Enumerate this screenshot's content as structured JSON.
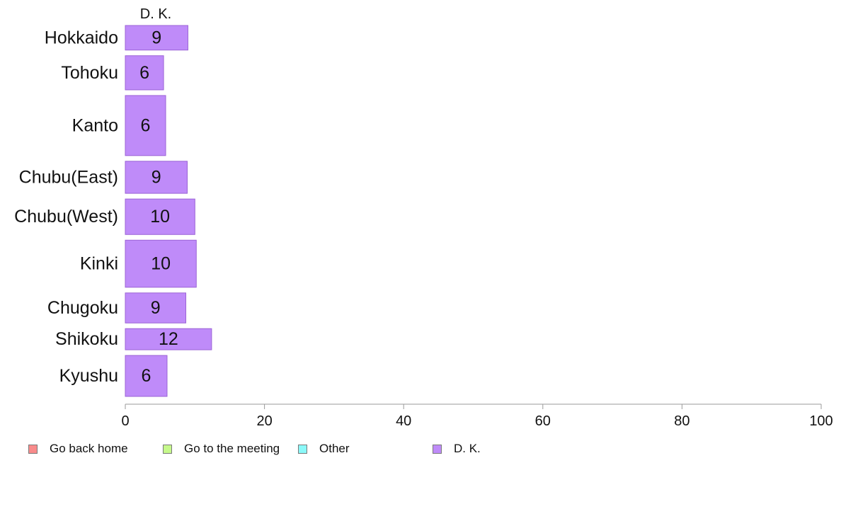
{
  "chart_data": {
    "type": "bar",
    "orientation": "horizontal",
    "stacked": true,
    "variable_width": true,
    "column_header": "D. K.",
    "categories": [
      "Hokkaido",
      "Tohoku",
      "Kanto",
      "Chubu(East)",
      "Chubu(West)",
      "Kinki",
      "Chugoku",
      "Shikoku",
      "Kyushu"
    ],
    "row_weights": [
      36,
      50,
      88,
      47,
      52,
      69,
      44,
      31,
      60
    ],
    "series": [
      {
        "name": "Go back home",
        "color": "#f98b8b",
        "values": [
          0,
          0,
          0,
          0,
          0,
          0,
          0,
          0,
          0
        ]
      },
      {
        "name": "Go to the meeting",
        "color": "#c6f98b",
        "values": [
          0,
          0,
          0,
          0,
          0,
          0,
          0,
          0,
          0
        ]
      },
      {
        "name": "Other",
        "color": "#8bf9f9",
        "values": [
          0,
          0,
          0,
          0,
          0,
          0,
          0,
          0,
          0
        ]
      },
      {
        "name": "D. K.",
        "color": "#bf8bf9",
        "values": [
          9,
          5.5,
          5.8,
          8.9,
          10,
          10.2,
          8.7,
          12.4,
          6
        ],
        "labels": [
          "9",
          "6",
          "6",
          "9",
          "10",
          "10",
          "9",
          "12",
          "6"
        ]
      }
    ],
    "xlim": [
      0,
      100
    ],
    "xticks": [
      "0",
      "20",
      "40",
      "60",
      "80",
      "100"
    ],
    "xlabel": "",
    "ylabel": "",
    "grid": false,
    "legend_position": "bottom"
  }
}
